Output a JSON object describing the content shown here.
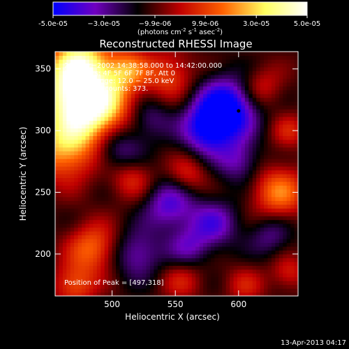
{
  "chart_data": {
    "type": "heatmap",
    "title": "Reconstructed RHESSI Image",
    "colorbar": {
      "ticks": [
        "-5.0e-05",
        "−3.0e-05",
        "−9.9e-06",
        "9.9e-06",
        "3.0e-05",
        "5.0e-05"
      ],
      "tick_values": [
        -5e-05,
        -3e-05,
        -9.9e-06,
        9.9e-06,
        3e-05,
        5e-05
      ],
      "range": [
        -5e-05,
        5e-05
      ],
      "unit_label": "(photons cm",
      "unit_exp1": "-2",
      "unit_mid": " s",
      "unit_exp2": "-1",
      "unit_end": " asec",
      "unit_exp3": "-2",
      "unit_close": ")",
      "colors": [
        "#0000ff",
        "#7000c0",
        "#000000",
        "#c00000",
        "#ff6000",
        "#ffff60",
        "#ffffff"
      ]
    },
    "xlabel": "Heliocentric X (arcsec)",
    "ylabel": "Heliocentric Y (arcsec)",
    "xlim": [
      455,
      647
    ],
    "ylim": [
      166,
      364
    ],
    "xticks": [
      500,
      550,
      600
    ],
    "yticks": [
      200,
      250,
      300,
      350
    ],
    "annotations": [
      "28−Apr−2002 14:38:58.000 to 14:42:00.000",
      "Detectors: 4F 5F 6F 7F 8F, Att 0",
      "Energy Range: 12.0 − 25.0 keV",
      "Clean    Total counts: 373."
    ],
    "peak_label": "Position of Peak = [497,318]",
    "marker_point": [
      600,
      316
    ],
    "blobs": [
      {
        "x": 485,
        "y": 320,
        "amp": 4.8e-05,
        "s": 20
      },
      {
        "x": 468,
        "y": 335,
        "amp": 4e-05,
        "s": 22
      },
      {
        "x": 462,
        "y": 285,
        "amp": 3.4e-05,
        "s": 18
      },
      {
        "x": 475,
        "y": 358,
        "amp": 3e-05,
        "s": 14
      },
      {
        "x": 512,
        "y": 350,
        "amp": 2.6e-05,
        "s": 12
      },
      {
        "x": 545,
        "y": 345,
        "amp": 2.2e-05,
        "s": 14
      },
      {
        "x": 485,
        "y": 205,
        "amp": 2.8e-05,
        "s": 14
      },
      {
        "x": 470,
        "y": 175,
        "amp": 2.4e-05,
        "s": 12
      },
      {
        "x": 515,
        "y": 262,
        "amp": 1.9e-05,
        "s": 12
      },
      {
        "x": 560,
        "y": 265,
        "amp": 1.7e-05,
        "s": 11
      },
      {
        "x": 632,
        "y": 250,
        "amp": 3e-05,
        "s": 15
      },
      {
        "x": 618,
        "y": 335,
        "amp": 1.7e-05,
        "s": 12
      },
      {
        "x": 640,
        "y": 300,
        "amp": 1.5e-05,
        "s": 10
      },
      {
        "x": 555,
        "y": 180,
        "amp": 1.5e-05,
        "s": 12
      },
      {
        "x": 605,
        "y": 175,
        "amp": 1.4e-05,
        "s": 11
      },
      {
        "x": 640,
        "y": 185,
        "amp": 1.6e-05,
        "s": 10
      },
      {
        "x": 590,
        "y": 318,
        "amp": -4.6e-05,
        "s": 17
      },
      {
        "x": 575,
        "y": 300,
        "amp": -3e-05,
        "s": 14
      },
      {
        "x": 545,
        "y": 240,
        "amp": -2.6e-05,
        "s": 14
      },
      {
        "x": 505,
        "y": 285,
        "amp": -2.2e-05,
        "s": 14
      },
      {
        "x": 580,
        "y": 225,
        "amp": -2.4e-05,
        "s": 14
      },
      {
        "x": 520,
        "y": 200,
        "amp": -2.2e-05,
        "s": 14
      },
      {
        "x": 600,
        "y": 275,
        "amp": -2e-05,
        "s": 12
      },
      {
        "x": 530,
        "y": 310,
        "amp": -1.6e-05,
        "s": 12
      },
      {
        "x": 560,
        "y": 205,
        "amp": -1.8e-05,
        "s": 12
      },
      {
        "x": 625,
        "y": 215,
        "amp": -1.6e-05,
        "s": 12
      }
    ]
  },
  "footer": {
    "timestamp": "13-Apr-2013 04:17"
  }
}
